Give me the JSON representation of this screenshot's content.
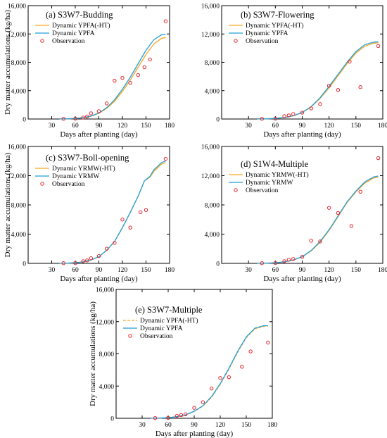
{
  "colors": {
    "orange": "#f5a623",
    "blue": "#1f9fd8",
    "obs": "#e8232a"
  },
  "chart_data": [
    {
      "type": "line",
      "title": "(a) S3W7-Budding",
      "xlabel": "Days after planting (day)",
      "ylabel": "Dry matter accumulations (kg/ha)",
      "xlim": [
        0,
        180
      ],
      "ylim": [
        0,
        16000
      ],
      "xticks": [
        "30",
        "60",
        "90",
        "120",
        "150",
        "180"
      ],
      "yticks": [
        "0",
        "4,000",
        "8,000",
        "12,000",
        "16,000"
      ],
      "legend_position": "top-left",
      "series": [
        {
          "name": "Dynamic YPFA(-HT)",
          "style": "solid",
          "color": "orange",
          "x": [
            40,
            50,
            60,
            70,
            80,
            90,
            100,
            110,
            120,
            130,
            140,
            150,
            160,
            170,
            175
          ],
          "y": [
            10,
            30,
            80,
            180,
            400,
            800,
            1500,
            2500,
            3900,
            5500,
            7300,
            9100,
            10600,
            11400,
            11500
          ]
        },
        {
          "name": "Dynamic YPFA",
          "style": "solid",
          "color": "blue",
          "x": [
            40,
            50,
            60,
            70,
            80,
            90,
            100,
            110,
            120,
            130,
            140,
            150,
            160,
            170,
            175
          ],
          "y": [
            10,
            30,
            80,
            180,
            420,
            850,
            1600,
            2700,
            4200,
            5900,
            7800,
            9700,
            11200,
            11900,
            11950
          ]
        },
        {
          "name": "Observation",
          "style": "markers",
          "color": "obs",
          "x": [
            45,
            60,
            70,
            75,
            80,
            90,
            100,
            110,
            120,
            130,
            140,
            148,
            155,
            175
          ],
          "y": [
            30,
            50,
            200,
            350,
            800,
            1100,
            2200,
            5400,
            5800,
            5100,
            6200,
            7300,
            8400,
            13800
          ]
        }
      ]
    },
    {
      "type": "line",
      "title": "(b) S3W7-Flowering",
      "xlabel": "Days after planting (day)",
      "ylabel": "",
      "xlim": [
        0,
        180
      ],
      "ylim": [
        0,
        16000
      ],
      "xticks": [
        "30",
        "60",
        "90",
        "120",
        "150",
        "180"
      ],
      "yticks": [
        "0",
        "4,000",
        "8,000",
        "12,000",
        "16,000"
      ],
      "legend_position": "top-left",
      "series": [
        {
          "name": "Dynamic YPFA(-HT)",
          "style": "solid",
          "color": "orange",
          "x": [
            40,
            50,
            60,
            70,
            80,
            90,
            100,
            110,
            120,
            130,
            140,
            150,
            160,
            170,
            175
          ],
          "y": [
            10,
            30,
            80,
            200,
            450,
            900,
            1700,
            2900,
            4400,
            6100,
            7800,
            9300,
            10300,
            10700,
            10750
          ]
        },
        {
          "name": "Dynamic YPFA",
          "style": "solid",
          "color": "blue",
          "x": [
            40,
            50,
            60,
            70,
            80,
            90,
            100,
            110,
            120,
            130,
            140,
            150,
            160,
            170,
            175
          ],
          "y": [
            10,
            30,
            80,
            200,
            460,
            920,
            1750,
            3000,
            4600,
            6300,
            8000,
            9500,
            10500,
            10850,
            10900
          ]
        },
        {
          "name": "Observation",
          "style": "markers",
          "color": "obs",
          "x": [
            45,
            60,
            70,
            75,
            80,
            90,
            100,
            110,
            120,
            130,
            143,
            155,
            175
          ],
          "y": [
            30,
            50,
            400,
            500,
            700,
            900,
            1500,
            2100,
            4700,
            4100,
            8100,
            4500,
            10300
          ]
        }
      ]
    },
    {
      "type": "line",
      "title": "(c) S3W7-Boll-opening",
      "xlabel": "Days after planting (day)",
      "ylabel": "Dry matter accumulations (kg/ha)",
      "xlim": [
        0,
        180
      ],
      "ylim": [
        0,
        16000
      ],
      "xticks": [
        "30",
        "60",
        "90",
        "120",
        "150",
        "180"
      ],
      "yticks": [
        "0",
        "4,000",
        "8,000",
        "12,000",
        "16,000"
      ],
      "legend_position": "top-left",
      "series": [
        {
          "name": "Dynamic YRMW(-HT)",
          "style": "solid",
          "color": "orange",
          "x": [
            40,
            50,
            60,
            70,
            80,
            90,
            100,
            110,
            120,
            130,
            140,
            148,
            155,
            160,
            170,
            175
          ],
          "y": [
            10,
            30,
            80,
            200,
            450,
            900,
            1800,
            3000,
            4900,
            7000,
            9200,
            11300,
            11800,
            12600,
            13600,
            13800
          ]
        },
        {
          "name": "Dynamic YRMW",
          "style": "solid",
          "color": "blue",
          "x": [
            40,
            50,
            60,
            70,
            80,
            90,
            100,
            110,
            120,
            130,
            140,
            148,
            155,
            160,
            170,
            175
          ],
          "y": [
            10,
            30,
            80,
            200,
            450,
            900,
            1800,
            3000,
            4900,
            7000,
            9200,
            11300,
            11900,
            12800,
            13800,
            14000
          ]
        },
        {
          "name": "Observation",
          "style": "markers",
          "color": "obs",
          "x": [
            45,
            60,
            70,
            75,
            80,
            90,
            100,
            110,
            120,
            130,
            143,
            150,
            175
          ],
          "y": [
            30,
            40,
            300,
            400,
            700,
            1000,
            2000,
            2800,
            6000,
            4900,
            7000,
            7300,
            14300
          ]
        }
      ]
    },
    {
      "type": "line",
      "title": "(d) S1W4-Multiple",
      "xlabel": "Days after planting (day)",
      "ylabel": "",
      "xlim": [
        0,
        180
      ],
      "ylim": [
        0,
        16000
      ],
      "xticks": [
        "30",
        "60",
        "90",
        "120",
        "150",
        "180"
      ],
      "yticks": [
        "0",
        "4,000",
        "8,000",
        "12,000",
        "16,000"
      ],
      "legend_position": "top-left",
      "series": [
        {
          "name": "Dynamic YRMW(-HT)",
          "style": "solid",
          "color": "orange",
          "x": [
            40,
            50,
            60,
            70,
            80,
            90,
            100,
            110,
            120,
            130,
            140,
            150,
            160,
            170,
            175
          ],
          "y": [
            10,
            30,
            80,
            200,
            450,
            900,
            1700,
            2900,
            4500,
            6400,
            8300,
            9800,
            11000,
            11700,
            11800
          ]
        },
        {
          "name": "Dynamic YRMW",
          "style": "solid",
          "color": "blue",
          "x": [
            40,
            50,
            60,
            70,
            80,
            90,
            100,
            110,
            120,
            130,
            140,
            150,
            160,
            170,
            175
          ],
          "y": [
            10,
            30,
            80,
            200,
            460,
            920,
            1750,
            3000,
            4600,
            6500,
            8400,
            9900,
            11150,
            11850,
            11950
          ]
        },
        {
          "name": "Observation",
          "style": "markers",
          "color": "obs",
          "x": [
            45,
            60,
            70,
            75,
            80,
            90,
            100,
            110,
            120,
            130,
            145,
            155,
            175
          ],
          "y": [
            30,
            50,
            300,
            500,
            600,
            900,
            3100,
            3000,
            7600,
            6900,
            5100,
            9800,
            14400
          ]
        }
      ]
    },
    {
      "type": "line",
      "title": "(e) S3W7-Multiple",
      "xlabel": "Days after planting (day)",
      "ylabel": "Dry matter accumulations (kg/ha)",
      "xlim": [
        0,
        180
      ],
      "ylim": [
        0,
        16000
      ],
      "xticks": [
        "30",
        "60",
        "90",
        "120",
        "150",
        "180"
      ],
      "yticks": [
        "0",
        "4,000",
        "8,000",
        "12,000",
        "16,000"
      ],
      "legend_position": "top-left",
      "series": [
        {
          "name": "Dynamic YPFA(-HT)",
          "style": "dashed",
          "color": "orange",
          "x": [
            40,
            50,
            60,
            70,
            80,
            90,
            100,
            110,
            120,
            130,
            140,
            150,
            160,
            170,
            175
          ],
          "y": [
            10,
            30,
            80,
            200,
            400,
            850,
            1500,
            2600,
            4200,
            6100,
            8200,
            10000,
            11100,
            11400,
            11450
          ]
        },
        {
          "name": "Dynamic YPFA",
          "style": "solid",
          "color": "blue",
          "x": [
            40,
            50,
            60,
            70,
            80,
            90,
            100,
            110,
            120,
            130,
            140,
            150,
            160,
            170,
            175
          ],
          "y": [
            10,
            30,
            80,
            200,
            420,
            880,
            1550,
            2700,
            4300,
            6200,
            8300,
            10100,
            11200,
            11500,
            11500
          ]
        },
        {
          "name": "Observation",
          "style": "markers",
          "color": "obs",
          "x": [
            45,
            60,
            70,
            75,
            80,
            90,
            100,
            110,
            120,
            130,
            145,
            155,
            175
          ],
          "y": [
            30,
            50,
            300,
            400,
            500,
            1300,
            2000,
            3700,
            5000,
            5100,
            6400,
            8300,
            9400
          ]
        }
      ]
    }
  ]
}
